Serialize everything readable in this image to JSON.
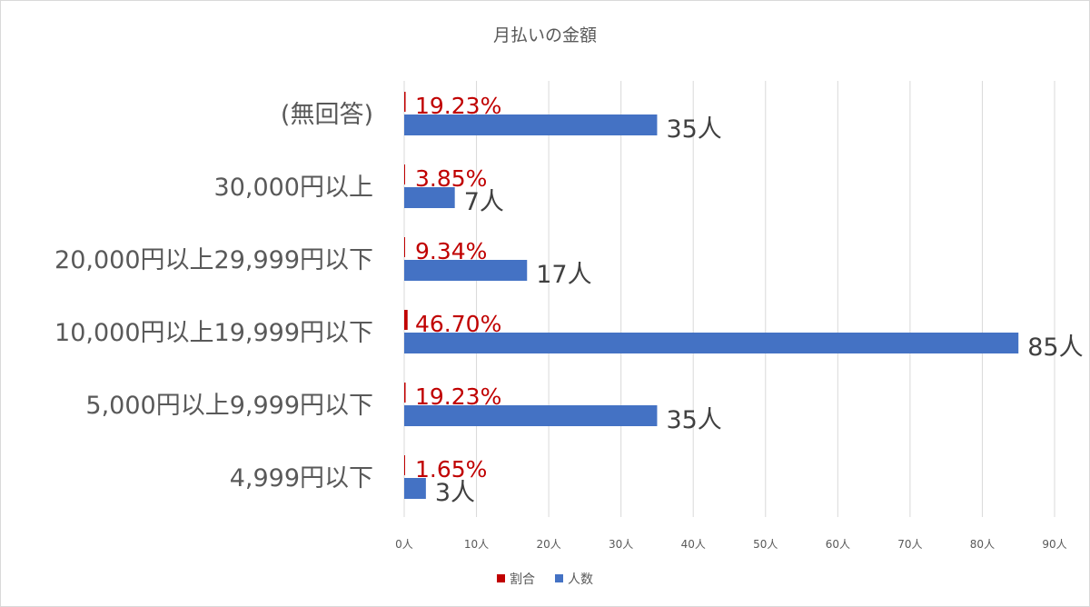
{
  "chart_data": {
    "type": "bar",
    "orientation": "horizontal",
    "title": "月払いの金額",
    "categories": [
      "(無回答)",
      "30,000円以上",
      "20,000円以上29,999円以下",
      "10,000円以上19,999円以下",
      "5,000円以上9,999円以下",
      "4,999円以下"
    ],
    "series": [
      {
        "name": "割合",
        "color": "#c00000",
        "values": [
          0.1923,
          0.0385,
          0.0934,
          0.467,
          0.1923,
          0.0165
        ],
        "labels": [
          "19.23%",
          "3.85%",
          "9.34%",
          "46.70%",
          "19.23%",
          "1.65%"
        ]
      },
      {
        "name": "人数",
        "color": "#4472c4",
        "values": [
          35,
          7,
          17,
          85,
          35,
          3
        ],
        "labels": [
          "35人",
          "7人",
          "17人",
          "85人",
          "35人",
          "3人"
        ]
      }
    ],
    "xlim": [
      0,
      90
    ],
    "xticks": [
      0,
      10,
      20,
      30,
      40,
      50,
      60,
      70,
      80,
      90
    ],
    "xtick_labels": [
      "0人",
      "10人",
      "20人",
      "30人",
      "40人",
      "50人",
      "60人",
      "70人",
      "80人",
      "90人"
    ],
    "grid": true,
    "legend": "bottom"
  }
}
